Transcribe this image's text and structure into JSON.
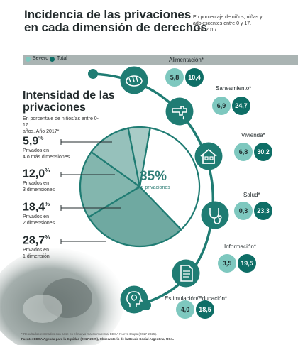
{
  "header": {
    "title_line1": "Incidencia de las privaciones",
    "title_line2": "en cada dimensión de derechos",
    "subtitle_line1": "En porcentaje de niños, niñas y",
    "subtitle_line2": "adolescentes entre 0 y 17.",
    "subtitle_line3": "Años 2017"
  },
  "legend": {
    "severe_label": "Severo",
    "total_label": "Total",
    "severe_color": "#7ec8bf",
    "total_color": "#0e6e66"
  },
  "intensity": {
    "title_line1": "Intensidad de las",
    "title_line2": "privaciones",
    "subtitle_line1": "En porcentaje de niños/as entre 0-17",
    "subtitle_line2": "años. Año 2017*",
    "center_value": "35%",
    "center_label": "Sin privaciones"
  },
  "chart_data": [
    {
      "type": "pie",
      "title": "Intensidad de las privaciones",
      "slices": [
        {
          "label": "Sin privaciones",
          "value": 35.0
        },
        {
          "label": "Privados en 1 dimensión",
          "value": 28.7
        },
        {
          "label": "Privados en 2 dimensiones",
          "value": 18.4
        },
        {
          "label": "Privados en 3 dimensiones",
          "value": 12.0
        },
        {
          "label": "Privados en 4 o más dimensiones",
          "value": 5.9
        }
      ],
      "colors": [
        "#ffffff",
        "#6fa9a1",
        "#83b6ae",
        "#96c1bb",
        "#a9ccc7"
      ]
    },
    {
      "type": "bar",
      "title": "Incidencia de las privaciones en cada dimensión de derechos",
      "categories": [
        "Alimentación*",
        "Saneamiento*",
        "Vivienda*",
        "Salud*",
        "Información*",
        "Estimulación/Educación*"
      ],
      "series": [
        {
          "name": "Severo",
          "values": [
            5.8,
            6.9,
            6.8,
            0.3,
            3.5,
            4.0
          ]
        },
        {
          "name": "Total",
          "values": [
            10.4,
            24.7,
            30.2,
            23.3,
            19.5,
            18.5
          ]
        }
      ]
    }
  ],
  "intensity_labels": [
    {
      "value": "5,9",
      "unit": "%",
      "line1": "Privados en",
      "line2": "4 o más dimensiones"
    },
    {
      "value": "12,0",
      "unit": "%",
      "line1": "Privados en",
      "line2": "3 dimensiones"
    },
    {
      "value": "18,4",
      "unit": "%",
      "line1": "Privados en",
      "line2": "2 dimensiones"
    },
    {
      "value": "28,7",
      "unit": "%",
      "line1": "Privados en",
      "line2": "1 dimensión"
    }
  ],
  "dimensions": [
    {
      "label": "Alimentación*",
      "severe": "5,8",
      "total": "10,4",
      "icon": "bread-icon"
    },
    {
      "label": "Saneamiento*",
      "severe": "6,9",
      "total": "24,7",
      "icon": "faucet-icon"
    },
    {
      "label": "Vivienda*",
      "severe": "6,8",
      "total": "30,2",
      "icon": "house-icon"
    },
    {
      "label": "Salud*",
      "severe": "0,3",
      "total": "23,3",
      "icon": "stethoscope-icon"
    },
    {
      "label": "Información*",
      "severe": "3,5",
      "total": "19,5",
      "icon": "document-icon"
    },
    {
      "label": "Estimulación/Educación*",
      "severe": "4,0",
      "total": "18,5",
      "icon": "head-bulb-icon"
    }
  ],
  "footer": {
    "note": "* Resultados estimados con base en el nuevo marco muestral EDSA Nueva Etapa (2017-2025).",
    "source": "Fuente: EDSA Agenda para la Equidad (2017-2025), Observatorio de la Deuda Social Argentina, UCA."
  }
}
